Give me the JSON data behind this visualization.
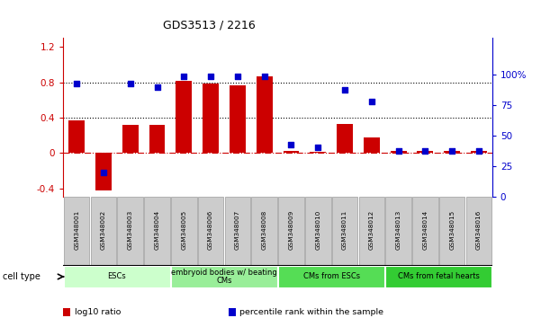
{
  "title": "GDS3513 / 2216",
  "samples": [
    "GSM348001",
    "GSM348002",
    "GSM348003",
    "GSM348004",
    "GSM348005",
    "GSM348006",
    "GSM348007",
    "GSM348008",
    "GSM348009",
    "GSM348010",
    "GSM348011",
    "GSM348012",
    "GSM348013",
    "GSM348014",
    "GSM348015",
    "GSM348016"
  ],
  "log10_ratio": [
    0.37,
    -0.42,
    0.32,
    0.32,
    0.82,
    0.79,
    0.77,
    0.87,
    0.02,
    0.01,
    0.33,
    0.18,
    0.02,
    0.02,
    0.02,
    0.02
  ],
  "percentile_rank": [
    93,
    20,
    93,
    90,
    99,
    99,
    99,
    99,
    43,
    41,
    88,
    78,
    38,
    38,
    38,
    38
  ],
  "bar_color": "#cc0000",
  "dot_color": "#0000cc",
  "ylim_left": [
    -0.5,
    1.3
  ],
  "ylim_right": [
    0,
    130
  ],
  "yticks_left": [
    -0.4,
    0.0,
    0.4,
    0.8,
    1.2
  ],
  "ytick_labels_left": [
    "-0.4",
    "0",
    "0.4",
    "0.8",
    "1.2"
  ],
  "yticks_right": [
    0,
    25,
    50,
    75,
    100
  ],
  "ytick_labels_right": [
    "0",
    "25",
    "50",
    "75",
    "100%"
  ],
  "hline_zero_style": "dashdot",
  "hline_zero_color": "#cc0000",
  "hline_dotted_vals": [
    0.4,
    0.8
  ],
  "hline_dotted_color": "#000000",
  "cell_types": [
    {
      "label": "ESCs",
      "start": 0,
      "end": 3,
      "color": "#ccffcc"
    },
    {
      "label": "embryoid bodies w/ beating\nCMs",
      "start": 4,
      "end": 7,
      "color": "#99ee99"
    },
    {
      "label": "CMs from ESCs",
      "start": 8,
      "end": 11,
      "color": "#55dd55"
    },
    {
      "label": "CMs from fetal hearts",
      "start": 12,
      "end": 15,
      "color": "#33cc33"
    }
  ],
  "cell_type_label": "cell type",
  "legend_items": [
    {
      "label": "log10 ratio",
      "color": "#cc0000"
    },
    {
      "label": "percentile rank within the sample",
      "color": "#0000cc"
    }
  ],
  "sample_box_color": "#cccccc",
  "sample_box_edge": "#888888"
}
